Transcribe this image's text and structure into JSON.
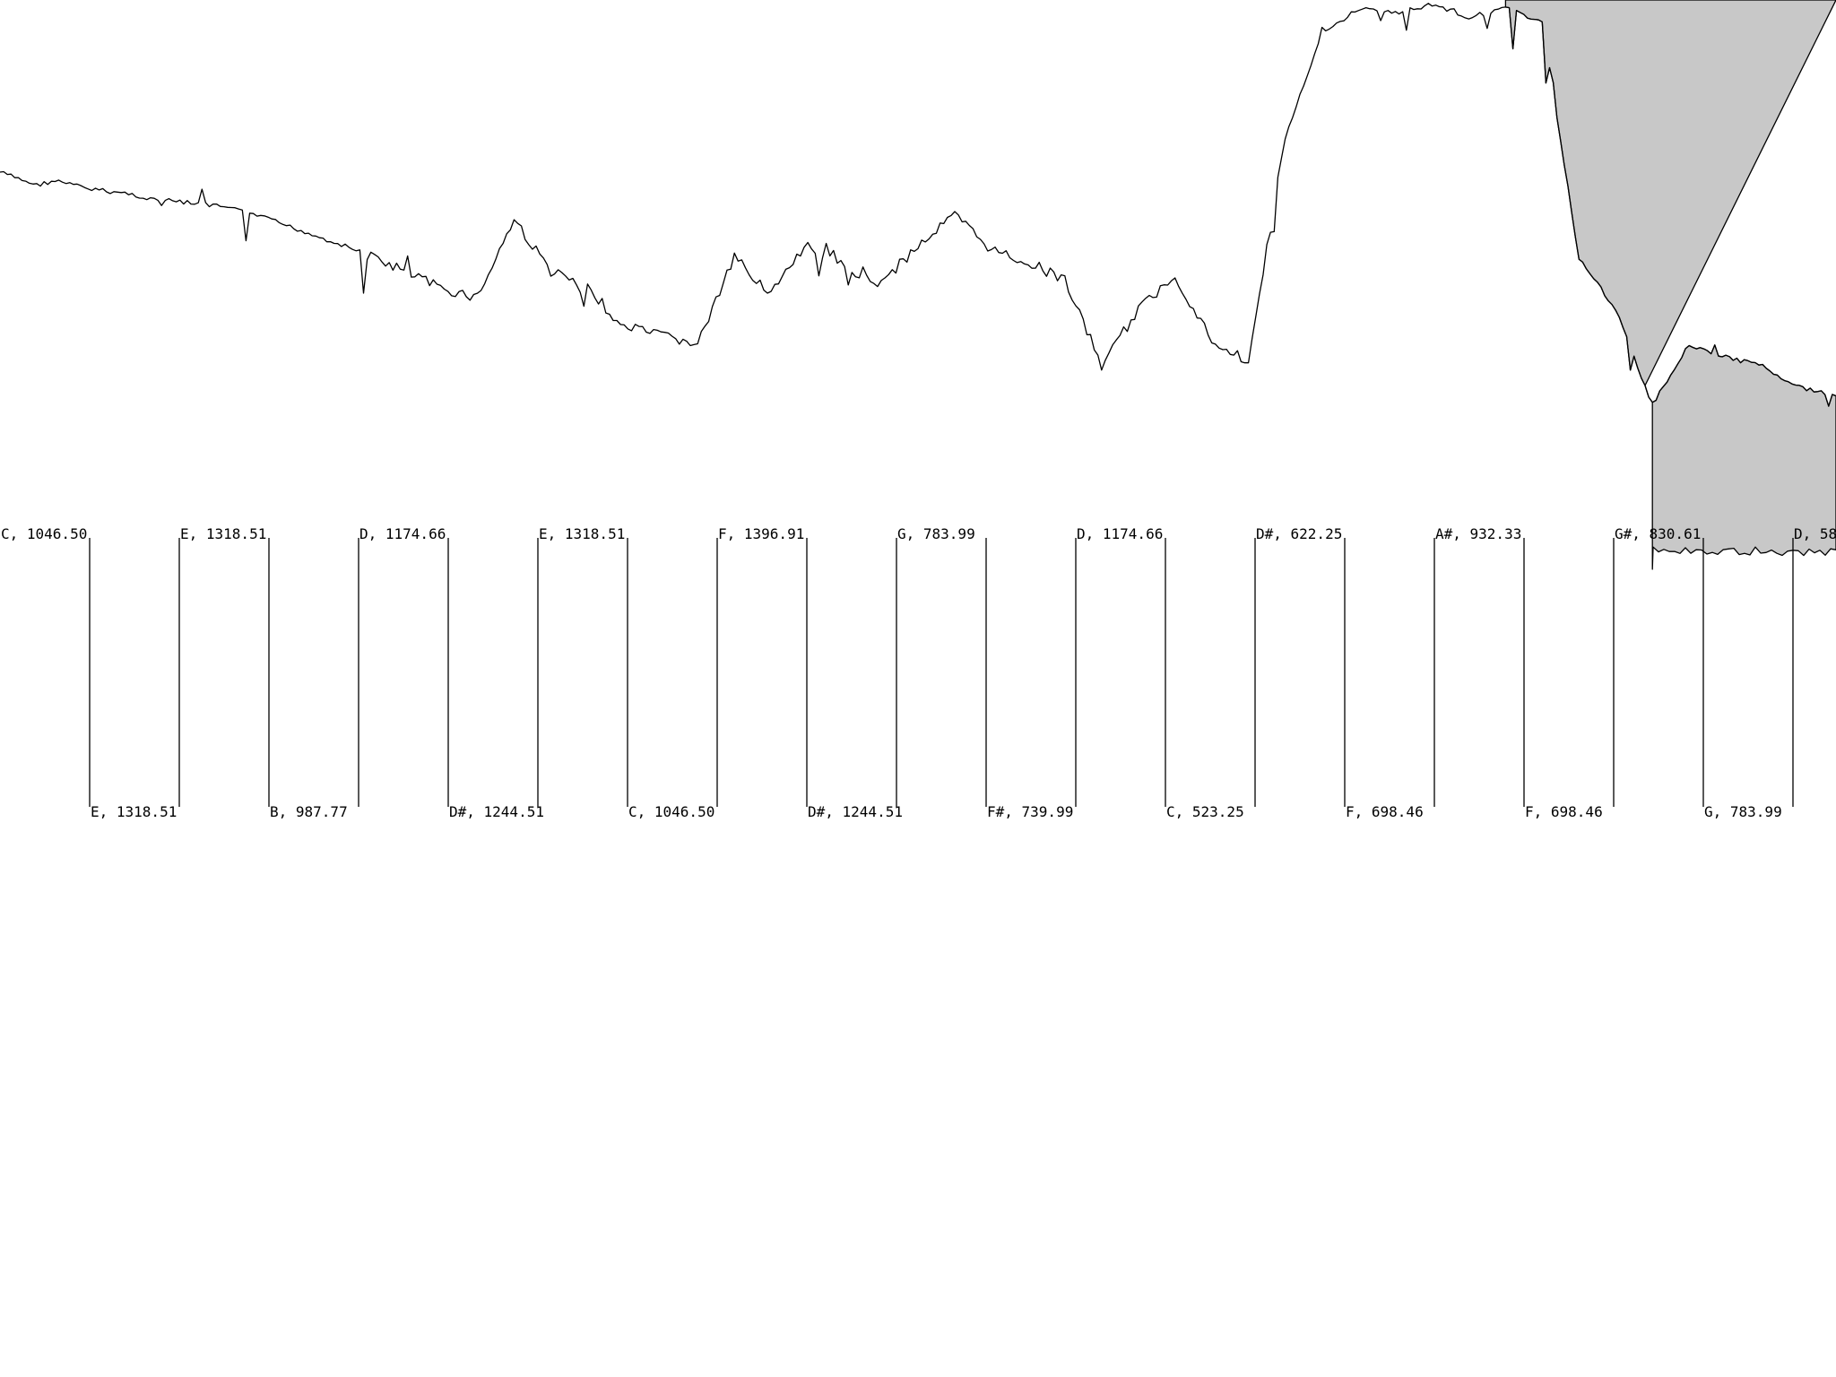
{
  "colors": {
    "background": "#ffffff",
    "line": "#000000",
    "shade": "#c8c8c8"
  },
  "chart_data": {
    "type": "line",
    "title": "",
    "xlabel": "",
    "ylabel": "",
    "grid": false,
    "legend": "none",
    "note_markers": {
      "top_row": [
        {
          "note": "C",
          "freq": "1046.50",
          "label": "C, 1046.50"
        },
        {
          "note": "E",
          "freq": "1318.51",
          "label": "E, 1318.51"
        },
        {
          "note": "D",
          "freq": "1174.66",
          "label": "D, 1174.66"
        },
        {
          "note": "E",
          "freq": "1318.51",
          "label": "E, 1318.51"
        },
        {
          "note": "F",
          "freq": "1396.91",
          "label": "F, 1396.91"
        },
        {
          "note": "G",
          "freq": "783.99",
          "label": "G, 783.99"
        },
        {
          "note": "D",
          "freq": "1174.66",
          "label": "D, 1174.66"
        },
        {
          "note": "D#",
          "freq": "622.25",
          "label": "D#, 622.25"
        },
        {
          "note": "A#",
          "freq": "932.33",
          "label": "A#, 932.33"
        },
        {
          "note": "G#",
          "freq": "830.61",
          "label": "G#, 830.61"
        },
        {
          "note": "D",
          "freq": "58",
          "label": "D, 58"
        }
      ],
      "bottom_row": [
        {
          "note": "E",
          "freq": "1318.51",
          "label": "E, 1318.51"
        },
        {
          "note": "B",
          "freq": "987.77",
          "label": "B, 987.77"
        },
        {
          "note": "D#",
          "freq": "1244.51",
          "label": "D#, 1244.51"
        },
        {
          "note": "C",
          "freq": "1046.50",
          "label": "C, 1046.50"
        },
        {
          "note": "D#",
          "freq": "1244.51",
          "label": "D#, 1244.51"
        },
        {
          "note": "F#",
          "freq": "739.99",
          "label": "F#, 739.99"
        },
        {
          "note": "C",
          "freq": "523.25",
          "label": "C, 523.25"
        },
        {
          "note": "F",
          "freq": "698.46",
          "label": "F, 698.46"
        },
        {
          "note": "F",
          "freq": "698.46",
          "label": "F, 698.46"
        },
        {
          "note": "G",
          "freq": "783.99",
          "label": "G, 783.99"
        }
      ]
    },
    "waveform": {
      "x": [
        0,
        2,
        3,
        5,
        7,
        8,
        10,
        12,
        14,
        16,
        18,
        20,
        22,
        24,
        26,
        28,
        30,
        32,
        34,
        36,
        38,
        40,
        42,
        44,
        46,
        48,
        50,
        52,
        54,
        56,
        58,
        60,
        62,
        64,
        66,
        68,
        70,
        72,
        74,
        76,
        78,
        80,
        82,
        84,
        86,
        88,
        90,
        92,
        94,
        96,
        98,
        100
      ],
      "y": [
        6,
        5.7,
        5.8,
        5.6,
        5.5,
        5.4,
        5.3,
        5.2,
        5.0,
        4.7,
        4.4,
        4.1,
        3.7,
        3.3,
        3.1,
        4.9,
        3.7,
        3.3,
        2.4,
        2.2,
        2.0,
        4.0,
        3.2,
        4.3,
        3.8,
        3.4,
        4.3,
        5.0,
        4.2,
        3.9,
        3.5,
        1.5,
        2.8,
        3.6,
        2.1,
        1.6,
        6.8,
        9.2,
        9.8,
        9.7,
        9.9,
        9.6,
        9.8,
        9.5,
        4.0,
        2.8,
        0.6,
        2.0,
        1.7,
        1.5,
        1.0,
        0.8
      ],
      "shaded_from_x": 82
    }
  }
}
